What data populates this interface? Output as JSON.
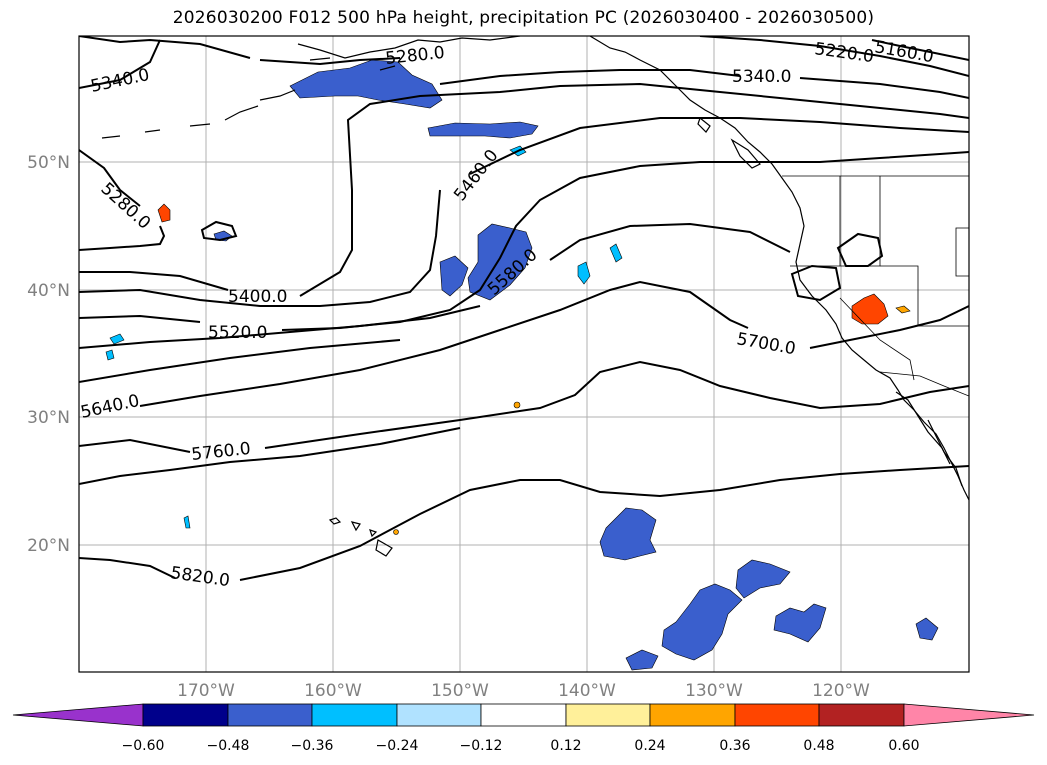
{
  "title": "2026030200 F012 500 hPa height, precipitation PC (2026030400 - 2026030500)",
  "map": {
    "lat_labels": [
      "50°N",
      "40°N",
      "30°N",
      "20°N"
    ],
    "lon_labels": [
      "170°W",
      "160°W",
      "150°W",
      "140°W",
      "130°W",
      "120°W"
    ],
    "contour_labels": [
      "5340.0",
      "5280.0",
      "5280.0",
      "5460.0",
      "5580.0",
      "5400.0",
      "5520.0",
      "5640.0",
      "5760.0",
      "5820.0",
      "5220.0",
      "5160.0",
      "5340.0",
      "5700.0"
    ],
    "contour_values": [
      5160,
      5220,
      5280,
      5340,
      5400,
      5460,
      5520,
      5580,
      5640,
      5700,
      5760,
      5820
    ]
  },
  "colorbar": {
    "ticks": [
      "−0.60",
      "−0.48",
      "−0.36",
      "−0.24",
      "−0.12",
      "0.12",
      "0.24",
      "0.36",
      "0.48",
      "0.60"
    ],
    "colors": [
      "#9932cc",
      "#00008b",
      "#3a5fcd",
      "#00bfff",
      "#b0e2ff",
      "#ffffff",
      "#fff09a",
      "#ffa500",
      "#ff4500",
      "#b22222",
      "#ff85a8"
    ]
  }
}
